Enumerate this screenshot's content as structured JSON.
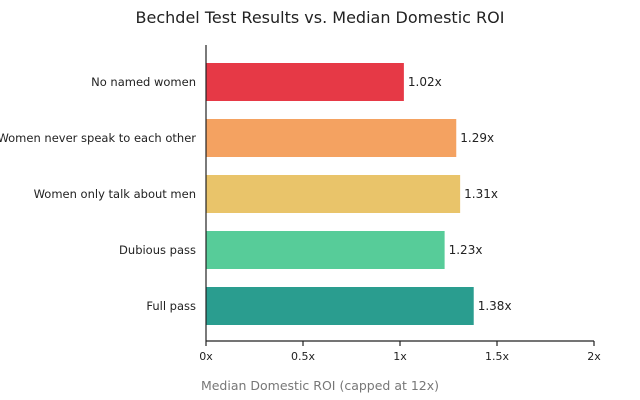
{
  "chart_data": {
    "type": "bar",
    "orientation": "horizontal",
    "title": "Bechdel Test Results vs. Median Domestic ROI",
    "xlabel": "Median Domestic ROI (capped at 12x)",
    "ylabel": "",
    "xlim": [
      0,
      2
    ],
    "x_ticks": [
      0,
      0.5,
      1,
      1.5,
      2
    ],
    "x_tick_labels": [
      "0x",
      "0.5x",
      "1x",
      "1.5x",
      "2x"
    ],
    "categories": [
      "No named women",
      "Women never speak to each other",
      "Women only talk about men",
      "Dubious pass",
      "Full pass"
    ],
    "values": [
      1.02,
      1.29,
      1.31,
      1.23,
      1.38
    ],
    "value_labels": [
      "1.02x",
      "1.29x",
      "1.31x",
      "1.23x",
      "1.38x"
    ],
    "colors": [
      "#e63946",
      "#f4a261",
      "#e9c46a",
      "#57cc99",
      "#2a9d8f"
    ],
    "grid": false,
    "legend": "none"
  }
}
